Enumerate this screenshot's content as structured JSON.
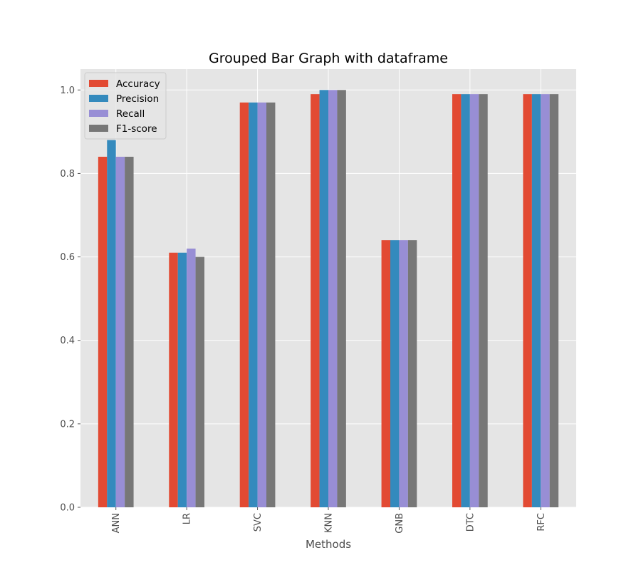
{
  "chart_data": {
    "type": "bar",
    "title": "Grouped Bar Graph with dataframe",
    "xlabel": "Methods",
    "ylabel": "",
    "categories": [
      "ANN",
      "LR",
      "SVC",
      "KNN",
      "GNB",
      "DTC",
      "RFC"
    ],
    "series": [
      {
        "name": "Accuracy",
        "color": "#E24A33",
        "values": [
          0.84,
          0.61,
          0.97,
          0.99,
          0.64,
          0.99,
          0.99
        ]
      },
      {
        "name": "Precision",
        "color": "#348ABD",
        "values": [
          0.88,
          0.61,
          0.97,
          1.0,
          0.64,
          0.99,
          0.99
        ]
      },
      {
        "name": "Recall",
        "color": "#988ED5",
        "values": [
          0.84,
          0.62,
          0.97,
          1.0,
          0.64,
          0.99,
          0.99
        ]
      },
      {
        "name": "F1-score",
        "color": "#777777",
        "values": [
          0.84,
          0.6,
          0.97,
          1.0,
          0.64,
          0.99,
          0.99
        ]
      }
    ],
    "ylim": [
      0,
      1.05
    ],
    "yticks": [
      "0.0",
      "0.2",
      "0.4",
      "0.6",
      "0.8",
      "1.0"
    ],
    "grid": true,
    "legend_position": "top-left",
    "style": {
      "axes_background": "#E5E5E5",
      "grid_color": "#FFFFFF",
      "tick_color": "#555555"
    }
  }
}
